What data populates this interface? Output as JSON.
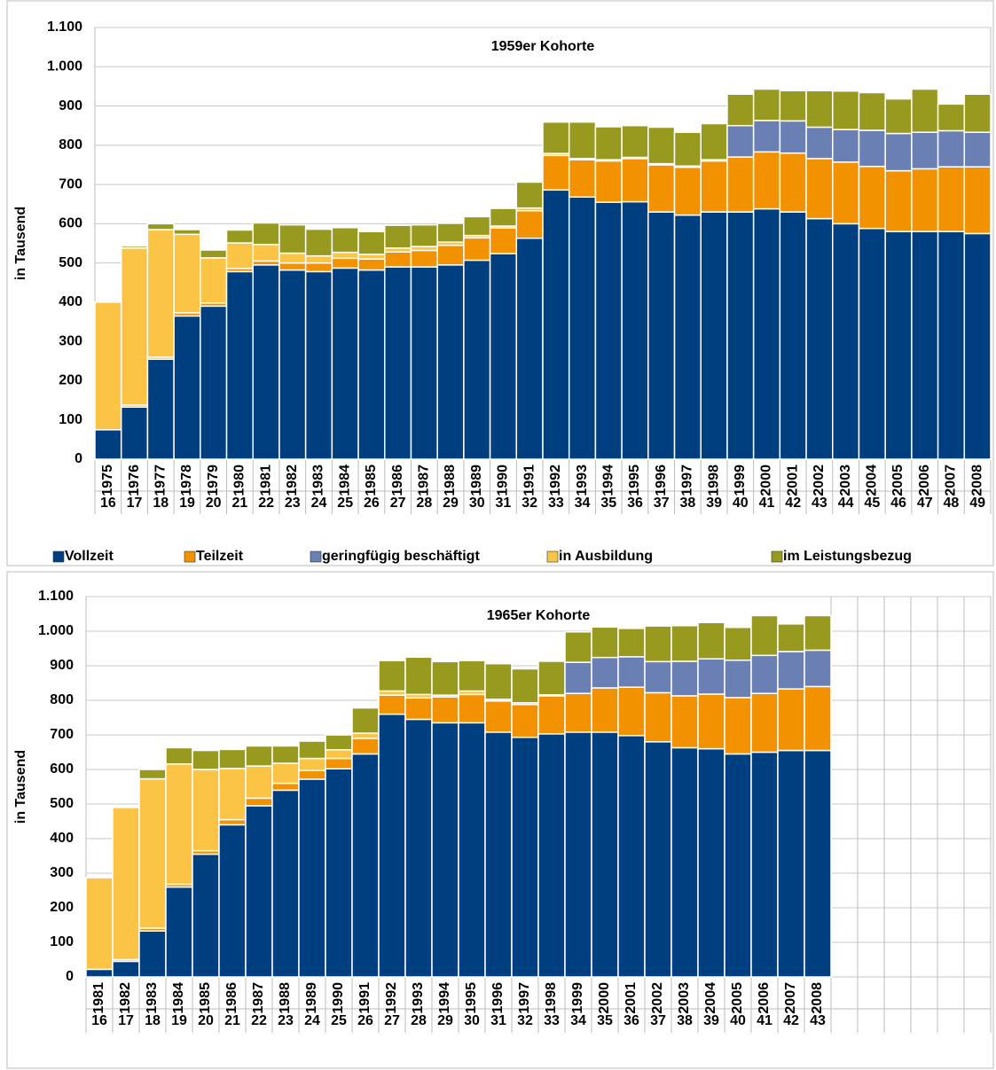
{
  "chart_data": [
    {
      "type": "stacked-bar",
      "title": "1959er Kohorte",
      "y_label": "in Tausend",
      "categories": [
        "1975",
        "1976",
        "1977",
        "1978",
        "1979",
        "1980",
        "1981",
        "1982",
        "1983",
        "1984",
        "1985",
        "1986",
        "1987",
        "1988",
        "1989",
        "1990",
        "1991",
        "1992",
        "1993",
        "1994",
        "1995",
        "1996",
        "1997",
        "1998",
        "1999",
        "2000",
        "2001",
        "2002",
        "2003",
        "2004",
        "2005",
        "2006",
        "2007",
        "2008"
      ],
      "ages": [
        "16",
        "17",
        "18",
        "19",
        "20",
        "21",
        "22",
        "23",
        "24",
        "25",
        "26",
        "27",
        "28",
        "29",
        "30",
        "31",
        "32",
        "33",
        "34",
        "35",
        "36",
        "37",
        "38",
        "39",
        "40",
        "41",
        "42",
        "43",
        "44",
        "45",
        "46",
        "47",
        "48",
        "49"
      ],
      "series": [
        {
          "name": "Vollzeit",
          "color": "#003f7f",
          "values": [
            75,
            133,
            255,
            365,
            390,
            478,
            495,
            482,
            478,
            487,
            482,
            490,
            490,
            495,
            507,
            524,
            563,
            686,
            668,
            655,
            656,
            630,
            622,
            630,
            630,
            638,
            630,
            613,
            600,
            588,
            580,
            580,
            580,
            575
          ]
        },
        {
          "name": "Teilzeit",
          "color": "#f39200",
          "values": [
            0,
            5,
            5,
            8,
            8,
            8,
            10,
            18,
            22,
            25,
            28,
            38,
            42,
            50,
            57,
            65,
            70,
            88,
            95,
            105,
            110,
            120,
            122,
            130,
            140,
            145,
            150,
            153,
            157,
            158,
            155,
            160,
            165,
            170
          ]
        },
        {
          "name": "geringfügig beschäftigt",
          "color": "#6a80b4",
          "values": [
            0,
            0,
            0,
            0,
            0,
            0,
            0,
            0,
            0,
            0,
            0,
            0,
            0,
            0,
            0,
            0,
            0,
            0,
            0,
            0,
            0,
            0,
            0,
            0,
            80,
            80,
            82,
            80,
            83,
            92,
            95,
            93,
            92,
            88
          ]
        },
        {
          "name": "in Ausbildung",
          "color": "#fbc444",
          "values": [
            325,
            400,
            325,
            200,
            115,
            65,
            42,
            25,
            18,
            15,
            12,
            10,
            10,
            8,
            6,
            5,
            7,
            5,
            3,
            3,
            3,
            3,
            3,
            3,
            0,
            0,
            0,
            0,
            0,
            0,
            0,
            0,
            0,
            0
          ]
        },
        {
          "name": "im Leistungsbezug",
          "color": "#979a1f",
          "values": [
            0,
            5,
            15,
            12,
            20,
            33,
            55,
            72,
            68,
            63,
            58,
            58,
            55,
            48,
            48,
            45,
            66,
            80,
            93,
            84,
            81,
            93,
            86,
            92,
            80,
            80,
            77,
            93,
            98,
            96,
            88,
            110,
            68,
            97
          ]
        }
      ],
      "ylim": [
        0,
        1100
      ],
      "yticks": [
        0,
        100,
        200,
        300,
        400,
        500,
        600,
        700,
        800,
        900,
        {
          "value": 1000,
          "label": "1.000"
        },
        {
          "value": 1100,
          "label": "1.100"
        }
      ],
      "grid": true,
      "legend": "bottom"
    },
    {
      "type": "stacked-bar",
      "title": "1965er Kohorte",
      "y_label": "in Tausend",
      "categories": [
        "1981",
        "1982",
        "1983",
        "1984",
        "1985",
        "1986",
        "1987",
        "1988",
        "1989",
        "1990",
        "1991",
        "1992",
        "1993",
        "1994",
        "1995",
        "1996",
        "1997",
        "1998",
        "1999",
        "2000",
        "2001",
        "2002",
        "2003",
        "2004",
        "2005",
        "2006",
        "2007",
        "2008",
        null,
        null,
        null,
        null,
        null,
        null
      ],
      "ages": [
        "16",
        "17",
        "18",
        "19",
        "20",
        "21",
        "22",
        "23",
        "24",
        "25",
        "26",
        "27",
        "28",
        "29",
        "30",
        "31",
        "32",
        "33",
        "34",
        "35",
        "36",
        "37",
        "38",
        "39",
        "40",
        "41",
        "42",
        "43",
        null,
        null,
        null,
        null,
        null,
        null
      ],
      "series": [
        {
          "color": "#003f7f",
          "values": [
            22,
            45,
            133,
            260,
            355,
            440,
            495,
            540,
            572,
            602,
            645,
            760,
            745,
            735,
            735,
            708,
            693,
            703,
            708,
            708,
            698,
            680,
            663,
            660,
            645,
            650,
            655,
            655,
            null,
            null,
            null,
            null,
            null,
            null
          ]
        },
        {
          "color": "#f39200",
          "values": [
            0,
            5,
            8,
            8,
            10,
            15,
            22,
            20,
            25,
            30,
            45,
            55,
            62,
            75,
            82,
            90,
            95,
            110,
            112,
            128,
            140,
            142,
            150,
            158,
            163,
            170,
            178,
            185,
            null,
            null,
            null,
            null,
            null,
            null
          ]
        },
        {
          "color": "#6a80b4",
          "values": [
            0,
            0,
            0,
            0,
            0,
            0,
            0,
            0,
            0,
            0,
            0,
            0,
            0,
            0,
            0,
            0,
            0,
            0,
            90,
            88,
            88,
            90,
            100,
            102,
            108,
            110,
            108,
            105,
            null,
            null,
            null,
            null,
            null,
            null
          ]
        },
        {
          "color": "#fbc444",
          "values": [
            265,
            440,
            432,
            348,
            235,
            148,
            93,
            58,
            35,
            25,
            15,
            12,
            10,
            5,
            10,
            5,
            5,
            3,
            0,
            0,
            0,
            0,
            0,
            0,
            0,
            0,
            0,
            0,
            null,
            null,
            null,
            null,
            null,
            null
          ]
        },
        {
          "color": "#979a1f",
          "values": [
            0,
            0,
            27,
            47,
            55,
            55,
            58,
            50,
            50,
            43,
            73,
            88,
            108,
            97,
            88,
            103,
            98,
            97,
            88,
            88,
            82,
            103,
            103,
            105,
            95,
            115,
            80,
            100,
            null,
            null,
            null,
            null,
            null,
            null
          ]
        }
      ],
      "ylim": [
        0,
        1100
      ],
      "yticks": [
        0,
        100,
        200,
        300,
        400,
        500,
        600,
        700,
        800,
        900,
        {
          "value": 1000,
          "label": "1.000"
        },
        {
          "value": 1100,
          "label": "1.100"
        }
      ],
      "grid": true
    }
  ]
}
